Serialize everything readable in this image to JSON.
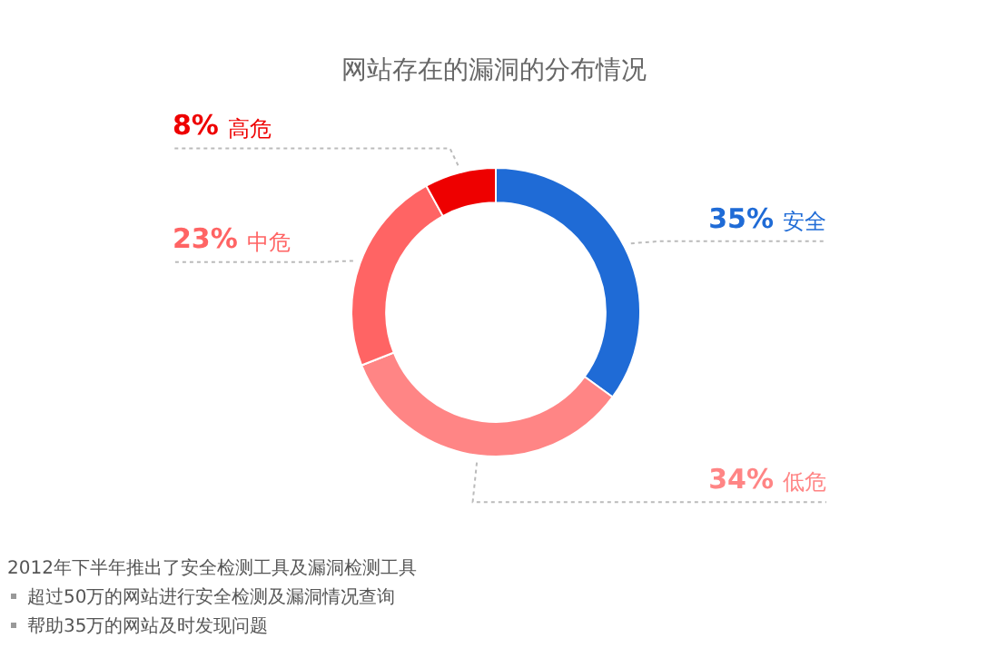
{
  "chart_data": {
    "type": "donut",
    "title": "网站存在的漏洞的分布情况",
    "categories": [
      "安全",
      "低危",
      "中危",
      "高危"
    ],
    "values": [
      35,
      34,
      23,
      8
    ],
    "colors": [
      "#1f6bd6",
      "#ff8585",
      "#ff6464",
      "#ee0000"
    ],
    "value_labels": [
      "35%",
      "34%",
      "23%",
      "8%"
    ],
    "legend": false,
    "annotations": [
      "2012年下半年推出了安全检测工具及漏洞检测工具",
      "超过50万的网站进行安全检测及漏洞情况查询",
      "帮助35万的网站及时发现问题"
    ]
  }
}
